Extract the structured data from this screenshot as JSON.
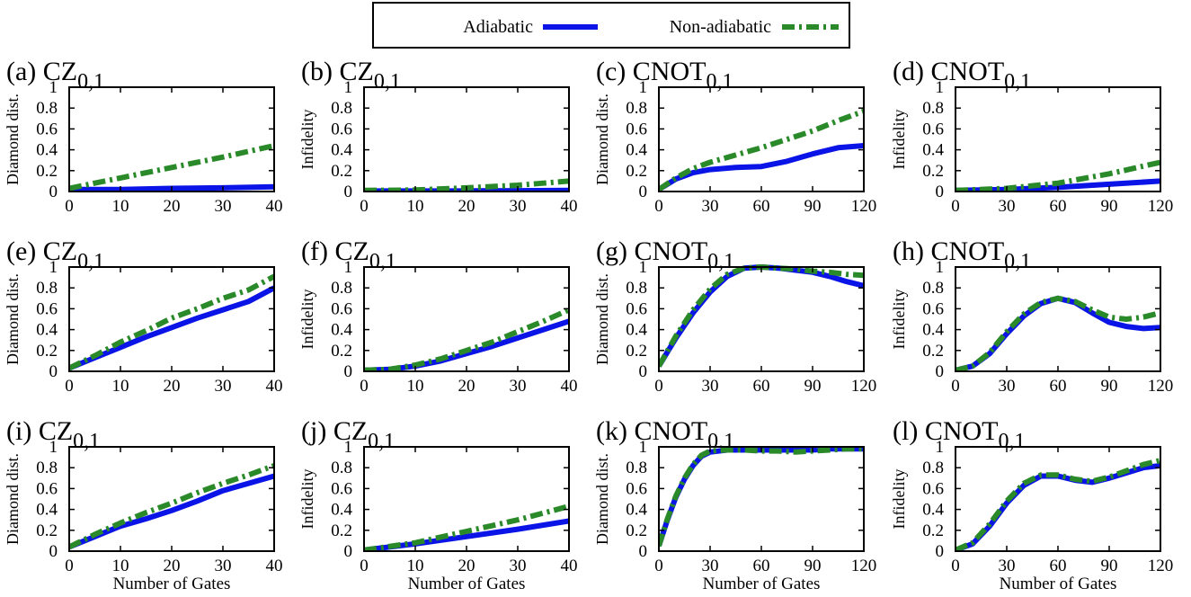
{
  "legend": {
    "entries": [
      {
        "label": "Adiabatic",
        "color": "#0a14e6",
        "style": "solid"
      },
      {
        "label": "Non-adiabatic",
        "color": "#2a8a2a",
        "style": "dashdot"
      }
    ]
  },
  "chart_data": [
    {
      "type": "line",
      "panel": "(a)",
      "gate": "CZ",
      "gate_sub": "0,1",
      "ylabel": "Diamond dist.",
      "xlabel": "",
      "xlim": [
        0,
        40
      ],
      "ylim": [
        0,
        1
      ],
      "xticks": [
        0,
        10,
        20,
        30,
        40
      ],
      "yticks": [
        0,
        0.2,
        0.4,
        0.6,
        0.8,
        1
      ],
      "series": [
        {
          "name": "Adiabatic",
          "x": [
            0,
            10,
            20,
            30,
            40
          ],
          "y": [
            0.02,
            0.02,
            0.03,
            0.035,
            0.045
          ]
        },
        {
          "name": "Non-adiabatic",
          "x": [
            0,
            10,
            20,
            30,
            40
          ],
          "y": [
            0.03,
            0.13,
            0.23,
            0.33,
            0.44
          ]
        }
      ]
    },
    {
      "type": "line",
      "panel": "(b)",
      "gate": "CZ",
      "gate_sub": "0,1",
      "ylabel": "Infidelity",
      "xlabel": "",
      "xlim": [
        0,
        40
      ],
      "ylim": [
        0,
        1
      ],
      "xticks": [
        0,
        10,
        20,
        30,
        40
      ],
      "yticks": [
        0,
        0.2,
        0.4,
        0.6,
        0.8,
        1
      ],
      "series": [
        {
          "name": "Adiabatic",
          "x": [
            0,
            10,
            20,
            30,
            40
          ],
          "y": [
            0.005,
            0.005,
            0.006,
            0.008,
            0.01
          ]
        },
        {
          "name": "Non-adiabatic",
          "x": [
            0,
            10,
            20,
            30,
            40
          ],
          "y": [
            0.01,
            0.015,
            0.035,
            0.06,
            0.1
          ]
        }
      ]
    },
    {
      "type": "line",
      "panel": "(c)",
      "gate": "CNOT",
      "gate_sub": "0,1",
      "ylabel": "Diamond dist.",
      "xlabel": "",
      "xlim": [
        0,
        120
      ],
      "ylim": [
        0,
        1
      ],
      "xticks": [
        0,
        30,
        60,
        90,
        120
      ],
      "yticks": [
        0,
        0.2,
        0.4,
        0.6,
        0.8,
        1
      ],
      "series": [
        {
          "name": "Adiabatic",
          "x": [
            0,
            10,
            20,
            30,
            45,
            60,
            75,
            90,
            105,
            120
          ],
          "y": [
            0.02,
            0.12,
            0.18,
            0.21,
            0.23,
            0.24,
            0.29,
            0.36,
            0.42,
            0.44
          ]
        },
        {
          "name": "Non-adiabatic",
          "x": [
            0,
            10,
            20,
            30,
            45,
            60,
            75,
            90,
            105,
            120
          ],
          "y": [
            0.02,
            0.13,
            0.22,
            0.28,
            0.35,
            0.42,
            0.5,
            0.58,
            0.68,
            0.77
          ]
        }
      ]
    },
    {
      "type": "line",
      "panel": "(d)",
      "gate": "CNOT",
      "gate_sub": "0,1",
      "ylabel": "Infidelity",
      "xlabel": "",
      "xlim": [
        0,
        120
      ],
      "ylim": [
        0,
        1
      ],
      "xticks": [
        0,
        30,
        60,
        90,
        120
      ],
      "yticks": [
        0,
        0.2,
        0.4,
        0.6,
        0.8,
        1
      ],
      "series": [
        {
          "name": "Adiabatic",
          "x": [
            0,
            30,
            60,
            90,
            120
          ],
          "y": [
            0.01,
            0.02,
            0.04,
            0.07,
            0.1
          ]
        },
        {
          "name": "Non-adiabatic",
          "x": [
            0,
            30,
            60,
            90,
            120
          ],
          "y": [
            0.01,
            0.03,
            0.08,
            0.17,
            0.28
          ]
        }
      ]
    },
    {
      "type": "line",
      "panel": "(e)",
      "gate": "CZ",
      "gate_sub": "0,1",
      "ylabel": "Diamond dist.",
      "xlabel": "",
      "xlim": [
        0,
        40
      ],
      "ylim": [
        0,
        1
      ],
      "xticks": [
        0,
        10,
        20,
        30,
        40
      ],
      "yticks": [
        0,
        0.2,
        0.4,
        0.6,
        0.8,
        1
      ],
      "series": [
        {
          "name": "Adiabatic",
          "x": [
            0,
            5,
            10,
            15,
            20,
            25,
            30,
            35,
            40
          ],
          "y": [
            0.03,
            0.13,
            0.23,
            0.33,
            0.42,
            0.51,
            0.59,
            0.67,
            0.8
          ]
        },
        {
          "name": "Non-adiabatic",
          "x": [
            0,
            5,
            10,
            15,
            20,
            25,
            30,
            35,
            40
          ],
          "y": [
            0.03,
            0.15,
            0.28,
            0.39,
            0.51,
            0.6,
            0.7,
            0.78,
            0.91
          ]
        }
      ]
    },
    {
      "type": "line",
      "panel": "(f)",
      "gate": "CZ",
      "gate_sub": "0,1",
      "ylabel": "Infidelity",
      "xlabel": "",
      "xlim": [
        0,
        40
      ],
      "ylim": [
        0,
        1
      ],
      "xticks": [
        0,
        10,
        20,
        30,
        40
      ],
      "yticks": [
        0,
        0.2,
        0.4,
        0.6,
        0.8,
        1
      ],
      "series": [
        {
          "name": "Adiabatic",
          "x": [
            0,
            5,
            10,
            15,
            20,
            25,
            30,
            35,
            40
          ],
          "y": [
            0.01,
            0.02,
            0.05,
            0.1,
            0.17,
            0.24,
            0.32,
            0.4,
            0.48
          ]
        },
        {
          "name": "Non-adiabatic",
          "x": [
            0,
            5,
            10,
            15,
            20,
            25,
            30,
            35,
            40
          ],
          "y": [
            0.01,
            0.02,
            0.06,
            0.12,
            0.2,
            0.28,
            0.38,
            0.48,
            0.59
          ]
        }
      ]
    },
    {
      "type": "line",
      "panel": "(g)",
      "gate": "CNOT",
      "gate_sub": "0,1",
      "ylabel": "Diamond dist.",
      "xlabel": "",
      "xlim": [
        0,
        120
      ],
      "ylim": [
        0,
        1
      ],
      "xticks": [
        0,
        30,
        60,
        90,
        120
      ],
      "yticks": [
        0,
        0.2,
        0.4,
        0.6,
        0.8,
        1
      ],
      "series": [
        {
          "name": "Adiabatic",
          "x": [
            0,
            10,
            20,
            30,
            40,
            50,
            60,
            70,
            80,
            90,
            100,
            110,
            120
          ],
          "y": [
            0.05,
            0.32,
            0.56,
            0.76,
            0.91,
            0.99,
            1.0,
            0.99,
            0.97,
            0.95,
            0.91,
            0.86,
            0.82
          ]
        },
        {
          "name": "Non-adiabatic",
          "x": [
            0,
            10,
            20,
            30,
            40,
            50,
            60,
            70,
            80,
            90,
            100,
            110,
            120
          ],
          "y": [
            0.05,
            0.34,
            0.59,
            0.79,
            0.93,
            0.99,
            1.0,
            0.99,
            0.98,
            0.96,
            0.95,
            0.93,
            0.92
          ]
        }
      ]
    },
    {
      "type": "line",
      "panel": "(h)",
      "gate": "CNOT",
      "gate_sub": "0,1",
      "ylabel": "Infidelity",
      "xlabel": "",
      "xlim": [
        0,
        120
      ],
      "ylim": [
        0,
        1
      ],
      "xticks": [
        0,
        30,
        60,
        90,
        120
      ],
      "yticks": [
        0,
        0.2,
        0.4,
        0.6,
        0.8,
        1
      ],
      "series": [
        {
          "name": "Adiabatic",
          "x": [
            0,
            10,
            20,
            30,
            40,
            50,
            60,
            70,
            80,
            90,
            100,
            110,
            120
          ],
          "y": [
            0.01,
            0.05,
            0.17,
            0.36,
            0.53,
            0.65,
            0.7,
            0.66,
            0.56,
            0.47,
            0.43,
            0.41,
            0.42
          ]
        },
        {
          "name": "Non-adiabatic",
          "x": [
            0,
            10,
            20,
            30,
            40,
            50,
            60,
            70,
            80,
            90,
            100,
            110,
            120
          ],
          "y": [
            0.01,
            0.05,
            0.18,
            0.38,
            0.55,
            0.66,
            0.7,
            0.67,
            0.59,
            0.52,
            0.5,
            0.52,
            0.56
          ]
        }
      ]
    },
    {
      "type": "line",
      "panel": "(i)",
      "gate": "CZ",
      "gate_sub": "0,1",
      "ylabel": "Diamond dist.",
      "xlabel": "Number of Gates",
      "xlim": [
        0,
        40
      ],
      "ylim": [
        0,
        1
      ],
      "xticks": [
        0,
        10,
        20,
        30,
        40
      ],
      "yticks": [
        0,
        0.2,
        0.4,
        0.6,
        0.8,
        1
      ],
      "series": [
        {
          "name": "Adiabatic",
          "x": [
            0,
            5,
            10,
            15,
            20,
            25,
            30,
            35,
            40
          ],
          "y": [
            0.04,
            0.14,
            0.24,
            0.31,
            0.39,
            0.48,
            0.58,
            0.65,
            0.72
          ]
        },
        {
          "name": "Non-adiabatic",
          "x": [
            0,
            5,
            10,
            15,
            20,
            25,
            30,
            35,
            40
          ],
          "y": [
            0.04,
            0.16,
            0.27,
            0.37,
            0.46,
            0.56,
            0.65,
            0.73,
            0.82
          ]
        }
      ]
    },
    {
      "type": "line",
      "panel": "(j)",
      "gate": "CZ",
      "gate_sub": "0,1",
      "ylabel": "Infidelity",
      "xlabel": "Number of Gates",
      "xlim": [
        0,
        40
      ],
      "ylim": [
        0,
        1
      ],
      "xticks": [
        0,
        10,
        20,
        30,
        40
      ],
      "yticks": [
        0,
        0.2,
        0.4,
        0.6,
        0.8,
        1
      ],
      "series": [
        {
          "name": "Adiabatic",
          "x": [
            0,
            10,
            20,
            30,
            40
          ],
          "y": [
            0.01,
            0.07,
            0.14,
            0.21,
            0.29
          ]
        },
        {
          "name": "Non-adiabatic",
          "x": [
            0,
            10,
            20,
            30,
            40
          ],
          "y": [
            0.01,
            0.08,
            0.19,
            0.3,
            0.43
          ]
        }
      ]
    },
    {
      "type": "line",
      "panel": "(k)",
      "gate": "CNOT",
      "gate_sub": "0,1",
      "ylabel": "Diamond dist.",
      "xlabel": "Number of Gates",
      "xlim": [
        0,
        120
      ],
      "ylim": [
        0,
        1
      ],
      "xticks": [
        0,
        30,
        60,
        90,
        120
      ],
      "yticks": [
        0,
        0.2,
        0.4,
        0.6,
        0.8,
        1
      ],
      "series": [
        {
          "name": "Adiabatic",
          "x": [
            0,
            5,
            10,
            15,
            20,
            25,
            30,
            40,
            50,
            60,
            70,
            80,
            90,
            100,
            110,
            120
          ],
          "y": [
            0.05,
            0.3,
            0.52,
            0.69,
            0.82,
            0.91,
            0.95,
            0.97,
            0.97,
            0.97,
            0.97,
            0.97,
            0.97,
            0.98,
            0.98,
            0.98
          ]
        },
        {
          "name": "Non-adiabatic",
          "x": [
            0,
            5,
            10,
            15,
            20,
            25,
            30,
            40,
            50,
            60,
            70,
            80,
            90,
            100,
            110,
            120
          ],
          "y": [
            0.05,
            0.31,
            0.53,
            0.7,
            0.83,
            0.92,
            0.96,
            0.97,
            0.97,
            0.96,
            0.96,
            0.95,
            0.96,
            0.97,
            0.98,
            0.98
          ]
        }
      ]
    },
    {
      "type": "line",
      "panel": "(l)",
      "gate": "CNOT",
      "gate_sub": "0,1",
      "ylabel": "Infidelity",
      "xlabel": "Number of Gates",
      "xlim": [
        0,
        120
      ],
      "ylim": [
        0,
        1
      ],
      "xticks": [
        0,
        30,
        60,
        90,
        120
      ],
      "yticks": [
        0,
        0.2,
        0.4,
        0.6,
        0.8,
        1
      ],
      "series": [
        {
          "name": "Adiabatic",
          "x": [
            0,
            10,
            20,
            30,
            40,
            50,
            60,
            70,
            80,
            90,
            100,
            110,
            120
          ],
          "y": [
            0.01,
            0.07,
            0.24,
            0.46,
            0.63,
            0.72,
            0.72,
            0.68,
            0.66,
            0.7,
            0.75,
            0.8,
            0.82
          ]
        },
        {
          "name": "Non-adiabatic",
          "x": [
            0,
            10,
            20,
            30,
            40,
            50,
            60,
            70,
            80,
            90,
            100,
            110,
            120
          ],
          "y": [
            0.01,
            0.08,
            0.26,
            0.48,
            0.65,
            0.73,
            0.73,
            0.69,
            0.67,
            0.71,
            0.77,
            0.83,
            0.87
          ]
        }
      ]
    }
  ]
}
